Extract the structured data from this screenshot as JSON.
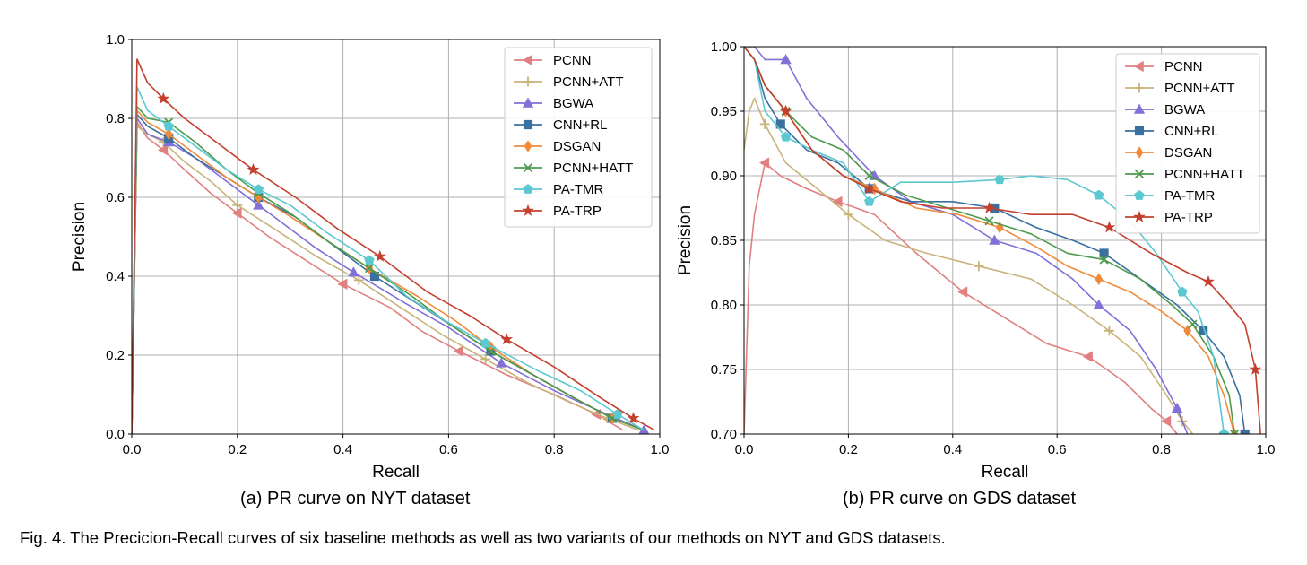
{
  "figure": {
    "caption": "Fig. 4. The Precicion-Recall curves of six baseline methods as well as two variants of our methods on NYT and GDS datasets."
  },
  "legend_colors": {
    "PCNN": "#e08080",
    "PCNN+ATT": "#c8b47a",
    "BGWA": "#8070d8",
    "CNN+RL": "#3a6fa0",
    "DSGAN": "#f08a3a",
    "PCNN+HATT": "#4c9a4c",
    "PA-TMR": "#5cc8d0",
    "PA-TRP": "#c4402e"
  },
  "chart_data": [
    {
      "type": "line",
      "subtitle": "(a) PR curve on NYT dataset",
      "xlabel": "Recall",
      "ylabel": "Precision",
      "xlim": [
        0.0,
        1.0
      ],
      "ylim": [
        0.0,
        1.0
      ],
      "xticks": [
        "0.0",
        "0.2",
        "0.4",
        "0.6",
        "0.8",
        "1.0"
      ],
      "yticks": [
        "0.0",
        "0.2",
        "0.4",
        "0.6",
        "0.8",
        "1.0"
      ],
      "grid": true,
      "legend": "top-right",
      "series": [
        {
          "name": "PCNN",
          "marker": "triangle-left",
          "x": [
            0.0,
            0.01,
            0.03,
            0.06,
            0.1,
            0.15,
            0.2,
            0.26,
            0.33,
            0.4,
            0.49,
            0.55,
            0.62,
            0.71,
            0.8,
            0.88,
            0.93
          ],
          "y": [
            0.0,
            0.79,
            0.75,
            0.72,
            0.67,
            0.61,
            0.56,
            0.5,
            0.44,
            0.38,
            0.32,
            0.26,
            0.21,
            0.15,
            0.1,
            0.05,
            0.01
          ]
        },
        {
          "name": "PCNN+ATT",
          "marker": "plus",
          "x": [
            0.0,
            0.01,
            0.03,
            0.06,
            0.1,
            0.15,
            0.2,
            0.27,
            0.35,
            0.43,
            0.51,
            0.59,
            0.67,
            0.75,
            0.83,
            0.9,
            0.96
          ],
          "y": [
            0.0,
            0.78,
            0.76,
            0.74,
            0.69,
            0.64,
            0.58,
            0.52,
            0.45,
            0.39,
            0.32,
            0.25,
            0.19,
            0.13,
            0.08,
            0.04,
            0.01
          ]
        },
        {
          "name": "BGWA",
          "marker": "triangle-up",
          "x": [
            0.0,
            0.01,
            0.03,
            0.07,
            0.12,
            0.18,
            0.24,
            0.28,
            0.35,
            0.42,
            0.52,
            0.6,
            0.7,
            0.8,
            0.9,
            0.97
          ],
          "y": [
            0.0,
            0.8,
            0.76,
            0.74,
            0.7,
            0.64,
            0.58,
            0.54,
            0.47,
            0.41,
            0.33,
            0.27,
            0.18,
            0.11,
            0.05,
            0.01
          ]
        },
        {
          "name": "CNN+RL",
          "marker": "square",
          "x": [
            0.0,
            0.01,
            0.03,
            0.07,
            0.12,
            0.18,
            0.24,
            0.31,
            0.38,
            0.46,
            0.53,
            0.6,
            0.68,
            0.76,
            0.84,
            0.91,
            0.97
          ],
          "y": [
            0.0,
            0.81,
            0.78,
            0.75,
            0.7,
            0.65,
            0.6,
            0.55,
            0.48,
            0.4,
            0.34,
            0.28,
            0.21,
            0.15,
            0.09,
            0.04,
            0.01
          ]
        },
        {
          "name": "DSGAN",
          "marker": "diamond",
          "x": [
            0.0,
            0.01,
            0.03,
            0.07,
            0.12,
            0.18,
            0.24,
            0.29,
            0.37,
            0.45,
            0.54,
            0.61,
            0.68,
            0.76,
            0.84,
            0.91,
            0.97
          ],
          "y": [
            0.0,
            0.82,
            0.79,
            0.76,
            0.71,
            0.65,
            0.6,
            0.56,
            0.49,
            0.42,
            0.35,
            0.29,
            0.22,
            0.15,
            0.09,
            0.04,
            0.01
          ]
        },
        {
          "name": "PCNN+HATT",
          "marker": "x",
          "x": [
            0.0,
            0.01,
            0.03,
            0.07,
            0.12,
            0.18,
            0.24,
            0.3,
            0.37,
            0.45,
            0.53,
            0.6,
            0.68,
            0.76,
            0.84,
            0.91,
            0.97
          ],
          "y": [
            0.0,
            0.83,
            0.8,
            0.79,
            0.74,
            0.67,
            0.61,
            0.56,
            0.49,
            0.42,
            0.35,
            0.28,
            0.21,
            0.15,
            0.09,
            0.04,
            0.01
          ]
        },
        {
          "name": "PA-TMR",
          "marker": "pentagon",
          "x": [
            0.0,
            0.01,
            0.03,
            0.07,
            0.12,
            0.18,
            0.24,
            0.3,
            0.37,
            0.45,
            0.52,
            0.59,
            0.67,
            0.77,
            0.85,
            0.92,
            0.97
          ],
          "y": [
            0.0,
            0.88,
            0.82,
            0.78,
            0.73,
            0.67,
            0.62,
            0.58,
            0.51,
            0.44,
            0.35,
            0.29,
            0.23,
            0.16,
            0.11,
            0.05,
            0.01
          ]
        },
        {
          "name": "PA-TRP",
          "marker": "star",
          "x": [
            0.0,
            0.01,
            0.03,
            0.06,
            0.1,
            0.16,
            0.23,
            0.31,
            0.39,
            0.47,
            0.56,
            0.64,
            0.71,
            0.8,
            0.89,
            0.95,
            0.99
          ],
          "y": [
            0.0,
            0.95,
            0.89,
            0.85,
            0.8,
            0.74,
            0.67,
            0.6,
            0.52,
            0.45,
            0.36,
            0.3,
            0.24,
            0.17,
            0.09,
            0.04,
            0.01
          ]
        }
      ]
    },
    {
      "type": "line",
      "subtitle": "(b) PR curve on GDS dataset",
      "xlabel": "Recall",
      "ylabel": "Precision",
      "xlim": [
        0.0,
        1.0
      ],
      "ylim": [
        0.7,
        1.0
      ],
      "xticks": [
        "0.0",
        "0.2",
        "0.4",
        "0.6",
        "0.8",
        "1.0"
      ],
      "yticks": [
        "0.70",
        "0.75",
        "0.80",
        "0.85",
        "0.90",
        "0.95",
        "1.00"
      ],
      "grid": true,
      "legend": "top-right",
      "series": [
        {
          "name": "PCNN",
          "marker": "triangle-left",
          "x": [
            0.0,
            0.01,
            0.02,
            0.04,
            0.07,
            0.12,
            0.18,
            0.25,
            0.33,
            0.42,
            0.5,
            0.58,
            0.66,
            0.73,
            0.78,
            0.81,
            0.83
          ],
          "y": [
            0.7,
            0.83,
            0.87,
            0.91,
            0.9,
            0.89,
            0.88,
            0.87,
            0.84,
            0.81,
            0.79,
            0.77,
            0.76,
            0.74,
            0.72,
            0.71,
            0.7
          ]
        },
        {
          "name": "PCNN+ATT",
          "marker": "plus",
          "x": [
            0.0,
            0.01,
            0.02,
            0.04,
            0.08,
            0.14,
            0.2,
            0.27,
            0.35,
            0.45,
            0.55,
            0.63,
            0.7,
            0.76,
            0.81,
            0.84,
            0.86
          ],
          "y": [
            0.92,
            0.95,
            0.96,
            0.94,
            0.91,
            0.89,
            0.87,
            0.85,
            0.84,
            0.83,
            0.82,
            0.8,
            0.78,
            0.76,
            0.73,
            0.71,
            0.7
          ]
        },
        {
          "name": "BGWA",
          "marker": "triangle-up",
          "x": [
            0.0,
            0.02,
            0.04,
            0.08,
            0.12,
            0.18,
            0.25,
            0.32,
            0.4,
            0.48,
            0.56,
            0.63,
            0.68,
            0.74,
            0.79,
            0.83,
            0.85
          ],
          "y": [
            1.0,
            1.0,
            0.99,
            0.99,
            0.96,
            0.93,
            0.9,
            0.88,
            0.87,
            0.85,
            0.84,
            0.82,
            0.8,
            0.78,
            0.75,
            0.72,
            0.7
          ]
        },
        {
          "name": "CNN+RL",
          "marker": "square",
          "x": [
            0.0,
            0.02,
            0.04,
            0.07,
            0.12,
            0.18,
            0.24,
            0.32,
            0.4,
            0.48,
            0.56,
            0.63,
            0.69,
            0.76,
            0.83,
            0.88,
            0.92,
            0.95,
            0.96
          ],
          "y": [
            1.0,
            0.99,
            0.96,
            0.94,
            0.92,
            0.91,
            0.89,
            0.88,
            0.88,
            0.875,
            0.86,
            0.85,
            0.84,
            0.82,
            0.8,
            0.78,
            0.76,
            0.73,
            0.7
          ]
        },
        {
          "name": "DSGAN",
          "marker": "diamond",
          "x": [
            0.0,
            0.02,
            0.04,
            0.08,
            0.13,
            0.19,
            0.25,
            0.33,
            0.41,
            0.49,
            0.56,
            0.62,
            0.68,
            0.74,
            0.8,
            0.85,
            0.89,
            0.92,
            0.94
          ],
          "y": [
            1.0,
            0.99,
            0.97,
            0.95,
            0.92,
            0.9,
            0.89,
            0.875,
            0.87,
            0.86,
            0.845,
            0.83,
            0.82,
            0.81,
            0.795,
            0.78,
            0.76,
            0.73,
            0.7
          ]
        },
        {
          "name": "PCNN+HATT",
          "marker": "x",
          "x": [
            0.0,
            0.02,
            0.04,
            0.08,
            0.13,
            0.19,
            0.24,
            0.31,
            0.39,
            0.47,
            0.55,
            0.62,
            0.69,
            0.76,
            0.82,
            0.86,
            0.9,
            0.93,
            0.94
          ],
          "y": [
            1.0,
            0.99,
            0.97,
            0.95,
            0.93,
            0.92,
            0.9,
            0.885,
            0.875,
            0.865,
            0.855,
            0.84,
            0.835,
            0.82,
            0.8,
            0.785,
            0.76,
            0.73,
            0.7
          ]
        },
        {
          "name": "PA-TMR",
          "marker": "pentagon",
          "x": [
            0.0,
            0.02,
            0.04,
            0.08,
            0.13,
            0.19,
            0.24,
            0.3,
            0.4,
            0.49,
            0.55,
            0.62,
            0.68,
            0.74,
            0.79,
            0.84,
            0.87,
            0.9,
            0.92
          ],
          "y": [
            1.0,
            0.99,
            0.95,
            0.93,
            0.92,
            0.91,
            0.88,
            0.895,
            0.895,
            0.897,
            0.9,
            0.897,
            0.885,
            0.865,
            0.84,
            0.81,
            0.795,
            0.76,
            0.7
          ]
        },
        {
          "name": "PA-TRP",
          "marker": "star",
          "x": [
            0.0,
            0.02,
            0.04,
            0.08,
            0.13,
            0.19,
            0.24,
            0.3,
            0.38,
            0.47,
            0.55,
            0.63,
            0.7,
            0.78,
            0.85,
            0.89,
            0.93,
            0.96,
            0.98,
            0.99
          ],
          "y": [
            1.0,
            0.99,
            0.97,
            0.95,
            0.92,
            0.9,
            0.89,
            0.88,
            0.875,
            0.875,
            0.87,
            0.87,
            0.86,
            0.84,
            0.825,
            0.818,
            0.8,
            0.785,
            0.75,
            0.7
          ]
        }
      ]
    }
  ]
}
